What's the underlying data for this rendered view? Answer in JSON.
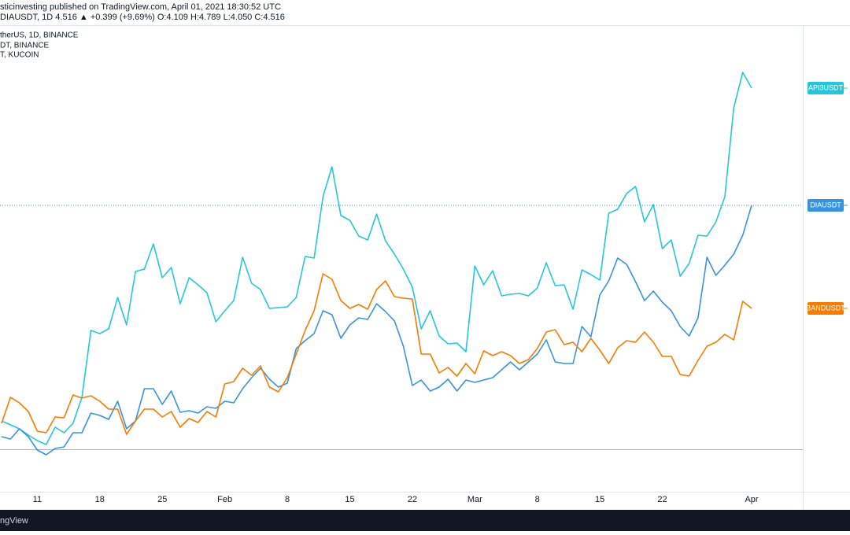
{
  "header": {
    "published": "sticinvesting published on TradingView.com, April 01, 2021 18:30:52 UTC",
    "quote": "DIAUSDT, 1D 4.516 ▲ +0.399 (+9.69%) O:4.109 H:4.789 L:4.050 C:4.516",
    "legend_lines": [
      "therUS, 1D, BINANCE",
      "DT, BINANCE",
      "T, KUCOIN"
    ]
  },
  "footer": {
    "brand": "ngView"
  },
  "chart_data": {
    "type": "line",
    "categories": [
      null,
      null,
      null,
      null,
      "11",
      null,
      null,
      null,
      null,
      null,
      null,
      "18",
      null,
      null,
      null,
      null,
      null,
      null,
      "25",
      null,
      null,
      null,
      null,
      null,
      null,
      "Feb",
      null,
      null,
      null,
      null,
      null,
      null,
      "8",
      null,
      null,
      null,
      null,
      null,
      null,
      "15",
      null,
      null,
      null,
      null,
      null,
      null,
      "22",
      null,
      null,
      null,
      null,
      null,
      null,
      "Mar",
      null,
      null,
      null,
      null,
      null,
      null,
      "8",
      null,
      null,
      null,
      null,
      null,
      null,
      "15",
      null,
      null,
      null,
      null,
      null,
      null,
      "22",
      null,
      null,
      null,
      null,
      null,
      null,
      null,
      null,
      null,
      "Apr"
    ],
    "series": [
      {
        "name": "API3USDT",
        "color": "#26c6da",
        "values": [
          85,
          80,
          75,
          67,
          60,
          55,
          77,
          70,
          82,
          115,
          200,
          196,
          202,
          242,
          207,
          275,
          278,
          310,
          267,
          280,
          234,
          267,
          258,
          248,
          211,
          225,
          238,
          293,
          260,
          252,
          228,
          229,
          230,
          242,
          294,
          292,
          370,
          408,
          346,
          340,
          320,
          315,
          348,
          314,
          297,
          278,
          255,
          202,
          225,
          193,
          183,
          184,
          173,
          282,
          258,
          276,
          244,
          246,
          247,
          244,
          254,
          286,
          257,
          258,
          227,
          277,
          271,
          264,
          349,
          354,
          374,
          383,
          338,
          360,
          304,
          315,
          269,
          285,
          321,
          320,
          338,
          370,
          483,
          528,
          508
        ]
      },
      {
        "name": "DIAUSDT",
        "color": "#3793e0",
        "values": [
          65,
          62,
          75,
          65,
          48,
          42,
          50,
          52,
          70,
          70,
          95,
          92,
          87,
          110,
          75,
          85,
          126,
          126,
          106,
          123,
          96,
          98,
          95,
          103,
          101,
          110,
          108,
          126,
          140,
          152,
          138,
          128,
          133,
          177,
          187,
          196,
          225,
          220,
          190,
          207,
          216,
          214,
          234,
          224,
          212,
          180,
          130,
          137,
          123,
          128,
          138,
          123,
          137,
          134,
          137,
          140,
          150,
          160,
          150,
          160,
          170,
          188,
          160,
          158,
          158,
          205,
          192,
          245,
          263,
          292,
          284,
          262,
          238,
          250,
          236,
          225,
          205,
          193,
          216,
          293,
          270,
          283,
          297,
          321,
          359
        ]
      },
      {
        "name": "BANDUSDT",
        "color": "#f57c00",
        "values": [
          82,
          115,
          108,
          97,
          72,
          70,
          90,
          89,
          118,
          114,
          117,
          110,
          100,
          100,
          68,
          85,
          100,
          100,
          90,
          97,
          77,
          88,
          83,
          97,
          90,
          132,
          135,
          152,
          143,
          155,
          128,
          122,
          140,
          170,
          200,
          225,
          272,
          265,
          238,
          228,
          233,
          227,
          252,
          263,
          243,
          241,
          240,
          170,
          170,
          146,
          153,
          142,
          158,
          145,
          174,
          168,
          173,
          168,
          158,
          163,
          177,
          198,
          201,
          182,
          185,
          173,
          190,
          175,
          158,
          178,
          187,
          185,
          198,
          185,
          167,
          167,
          144,
          142,
          162,
          180,
          185,
          195,
          188,
          237,
          228
        ]
      }
    ],
    "ylim": [
      -5,
      588
    ]
  }
}
